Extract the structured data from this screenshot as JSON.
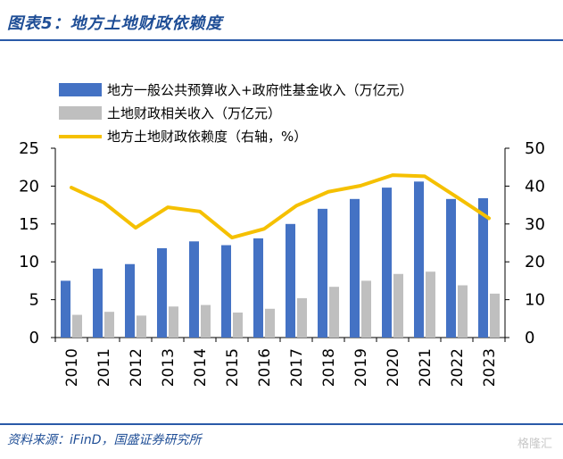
{
  "figure_title": "图表5：地方土地财政依赖度",
  "source": "资料来源：iFinD，国盛证券研究所",
  "watermark": "格隆汇",
  "chart_data": {
    "type": "bar+line",
    "categories": [
      "2010",
      "2011",
      "2012",
      "2013",
      "2014",
      "2015",
      "2016",
      "2017",
      "2018",
      "2019",
      "2020",
      "2021",
      "2022",
      "2023"
    ],
    "series": [
      {
        "name": "地方一般公共预算收入+政府性基金收入（万亿元）",
        "type": "bar",
        "axis": "left",
        "color": "#4472c4",
        "values": [
          7.5,
          9.1,
          9.7,
          11.8,
          12.7,
          12.2,
          13.1,
          15.0,
          17.0,
          18.3,
          19.8,
          20.6,
          18.3,
          18.4
        ]
      },
      {
        "name": "土地财政相关收入（万亿元）",
        "type": "bar",
        "axis": "left",
        "color": "#bfbfbf",
        "values": [
          3.0,
          3.4,
          2.9,
          4.1,
          4.3,
          3.3,
          3.8,
          5.2,
          6.7,
          7.5,
          8.4,
          8.7,
          6.9,
          5.8
        ]
      },
      {
        "name": "地方土地财政依赖度（右轴，%）",
        "type": "line",
        "axis": "right",
        "color": "#f5c000",
        "values": [
          39.6,
          35.7,
          29.0,
          34.4,
          33.3,
          26.4,
          28.7,
          34.8,
          38.5,
          40.1,
          42.9,
          42.6,
          37.1,
          31.5
        ]
      }
    ],
    "left_axis": {
      "ylim": [
        0,
        25
      ],
      "ticks": [
        "0",
        "5",
        "10",
        "15",
        "20",
        "25"
      ]
    },
    "right_axis": {
      "ylim": [
        0,
        50
      ],
      "ticks": [
        "0",
        "10",
        "20",
        "30",
        "40",
        "50"
      ]
    },
    "legend_position": "top"
  }
}
